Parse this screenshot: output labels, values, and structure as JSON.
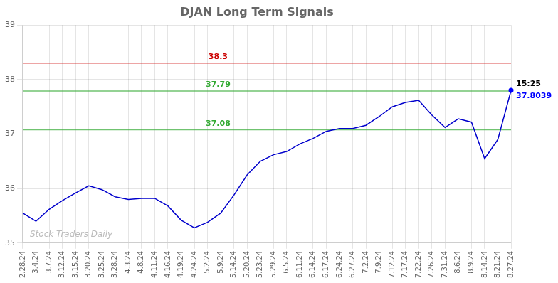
{
  "chart_data": {
    "type": "line",
    "title": "DJAN Long Term Signals",
    "categories": [
      "2.28.24",
      "3.4.24",
      "3.7.24",
      "3.12.24",
      "3.15.24",
      "3.20.24",
      "3.25.24",
      "3.28.24",
      "4.3.24",
      "4.8.24",
      "4.11.24",
      "4.16.24",
      "4.19.24",
      "4.24.24",
      "5.2.24",
      "5.9.24",
      "5.14.24",
      "5.20.24",
      "5.23.24",
      "5.29.24",
      "6.5.24",
      "6.11.24",
      "6.14.24",
      "6.17.24",
      "6.24.24",
      "6.27.24",
      "7.2.24",
      "7.9.24",
      "7.12.24",
      "7.17.24",
      "7.22.24",
      "7.26.24",
      "7.31.24",
      "8.6.24",
      "8.9.24",
      "8.14.24",
      "8.21.24",
      "8.27.24"
    ],
    "values": [
      35.55,
      35.4,
      35.62,
      35.78,
      35.92,
      36.05,
      35.98,
      35.85,
      35.8,
      35.82,
      35.82,
      35.68,
      35.42,
      35.28,
      35.38,
      35.55,
      35.88,
      36.25,
      36.5,
      36.62,
      36.68,
      36.82,
      36.92,
      37.05,
      37.1,
      37.1,
      37.16,
      37.32,
      37.5,
      37.58,
      37.62,
      37.35,
      37.12,
      37.28,
      37.22,
      36.55,
      36.9,
      37.8
    ],
    "color": "#0000cc",
    "reference_lines": [
      {
        "value": 38.3,
        "label": "38.3",
        "color": "#cc0000"
      },
      {
        "value": 37.79,
        "label": "37.79",
        "color": "#33aa33"
      },
      {
        "value": 37.08,
        "label": "37.08",
        "color": "#33aa33"
      }
    ],
    "last_point": {
      "value": 37.8039,
      "label": "37.8039",
      "time": "15:25",
      "color": "#0000ff"
    },
    "watermark": {
      "text": "Stock Traders Daily",
      "color": "#bbbbbb"
    },
    "ylim": [
      35,
      39
    ],
    "yticks": [
      35,
      36,
      37,
      38,
      39
    ],
    "grid": true
  }
}
